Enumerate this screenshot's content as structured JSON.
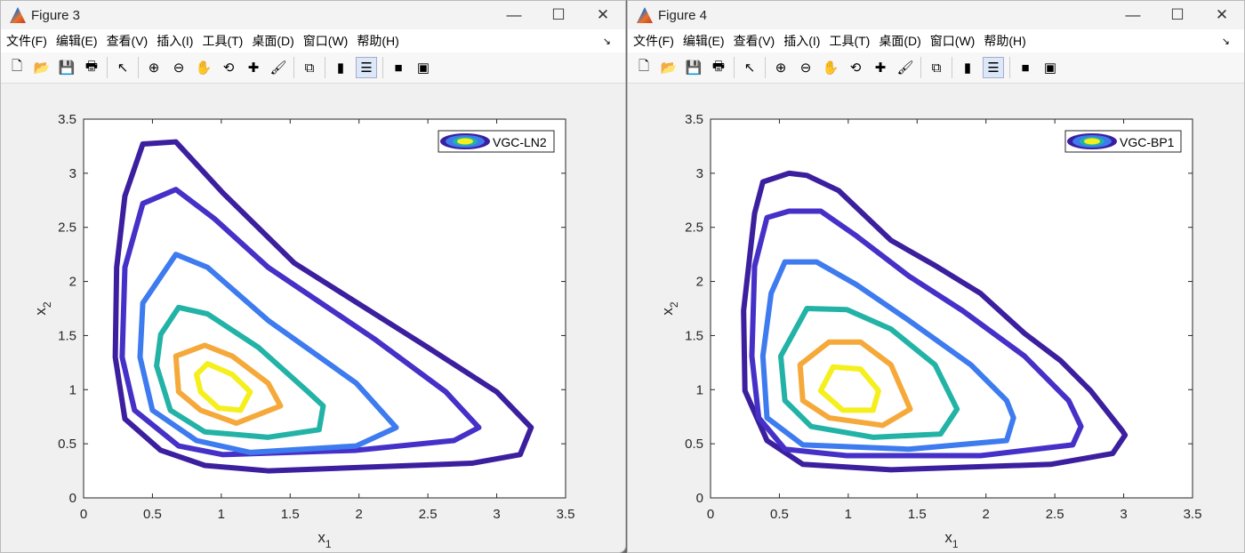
{
  "menu": [
    "文件(F)",
    "编辑(E)",
    "查看(V)",
    "插入(I)",
    "工具(T)",
    "桌面(D)",
    "窗口(W)",
    "帮助(H)"
  ],
  "toolbar_icons": [
    "new-file-icon",
    "open-folder-icon",
    "save-icon",
    "print-icon",
    "pointer-icon",
    "zoom-in-icon",
    "zoom-out-icon",
    "pan-hand-icon",
    "rotate-3d-icon",
    "data-cursor-icon",
    "brush-icon",
    "link-plot-icon",
    "colorbar-icon",
    "legend-icon",
    "hide-plot-tools-icon",
    "show-plot-tools-icon"
  ],
  "colors": {
    "levels": [
      "#3b1f9e",
      "#4530c8",
      "#3d7bef",
      "#22b3a6",
      "#f5a93a",
      "#f5ef1c"
    ]
  },
  "chart_data": [
    {
      "window_title": "Figure 3",
      "type": "contour",
      "xlabel": "x",
      "xlabel_sub": "1",
      "ylabel": "x",
      "ylabel_sub": "2",
      "xlim": [
        0,
        3.5
      ],
      "ylim": [
        0,
        3.5
      ],
      "xticks": [
        "0",
        "0.5",
        "1",
        "1.5",
        "2",
        "2.5",
        "3",
        "3.5"
      ],
      "yticks": [
        "0",
        "0.5",
        "1",
        "1.5",
        "2",
        "2.5",
        "3",
        "3.5"
      ],
      "legend": "VGC-LN2",
      "legend_position": "top-right",
      "contours": [
        [
          [
            0.43,
            3.27
          ],
          [
            0.67,
            3.29
          ],
          [
            1.01,
            2.82
          ],
          [
            1.53,
            2.17
          ],
          [
            2.5,
            1.39
          ],
          [
            3.0,
            0.98
          ],
          [
            3.25,
            0.65
          ],
          [
            3.17,
            0.4
          ],
          [
            2.82,
            0.32
          ],
          [
            1.34,
            0.25
          ],
          [
            0.88,
            0.3
          ],
          [
            0.56,
            0.44
          ],
          [
            0.3,
            0.73
          ],
          [
            0.23,
            1.3
          ],
          [
            0.24,
            2.13
          ],
          [
            0.3,
            2.79
          ]
        ],
        [
          [
            0.43,
            2.72
          ],
          [
            0.67,
            2.85
          ],
          [
            0.95,
            2.58
          ],
          [
            1.34,
            2.13
          ],
          [
            2.11,
            1.47
          ],
          [
            2.63,
            0.98
          ],
          [
            2.87,
            0.65
          ],
          [
            2.69,
            0.53
          ],
          [
            1.98,
            0.44
          ],
          [
            1.01,
            0.4
          ],
          [
            0.69,
            0.48
          ],
          [
            0.37,
            0.81
          ],
          [
            0.28,
            1.3
          ],
          [
            0.3,
            2.13
          ]
        ],
        [
          [
            0.67,
            2.25
          ],
          [
            0.9,
            2.13
          ],
          [
            1.34,
            1.64
          ],
          [
            1.98,
            1.06
          ],
          [
            2.27,
            0.65
          ],
          [
            1.98,
            0.48
          ],
          [
            1.21,
            0.42
          ],
          [
            0.82,
            0.53
          ],
          [
            0.5,
            0.81
          ],
          [
            0.41,
            1.3
          ],
          [
            0.43,
            1.8
          ]
        ],
        [
          [
            0.69,
            1.76
          ],
          [
            0.9,
            1.7
          ],
          [
            1.27,
            1.39
          ],
          [
            1.63,
            0.98
          ],
          [
            1.74,
            0.85
          ],
          [
            1.71,
            0.63
          ],
          [
            1.34,
            0.56
          ],
          [
            0.88,
            0.61
          ],
          [
            0.63,
            0.81
          ],
          [
            0.53,
            1.22
          ],
          [
            0.56,
            1.51
          ]
        ],
        [
          [
            0.88,
            1.41
          ],
          [
            1.08,
            1.31
          ],
          [
            1.34,
            1.06
          ],
          [
            1.43,
            0.85
          ],
          [
            1.11,
            0.69
          ],
          [
            0.85,
            0.81
          ],
          [
            0.69,
            0.98
          ],
          [
            0.67,
            1.31
          ]
        ],
        [
          [
            0.9,
            1.24
          ],
          [
            1.08,
            1.14
          ],
          [
            1.21,
            0.98
          ],
          [
            1.14,
            0.81
          ],
          [
            0.98,
            0.83
          ],
          [
            0.85,
            0.98
          ],
          [
            0.82,
            1.14
          ]
        ]
      ]
    },
    {
      "window_title": "Figure 4",
      "type": "contour",
      "xlabel": "x",
      "xlabel_sub": "1",
      "ylabel": "x",
      "ylabel_sub": "2",
      "xlim": [
        0,
        3.5
      ],
      "ylim": [
        0,
        3.5
      ],
      "xticks": [
        "0",
        "0.5",
        "1",
        "1.5",
        "2",
        "2.5",
        "3",
        "3.5"
      ],
      "yticks": [
        "0",
        "0.5",
        "1",
        "1.5",
        "2",
        "2.5",
        "3",
        "3.5"
      ],
      "legend": "VGC-BP1",
      "legend_position": "top-right",
      "contours": [
        [
          [
            0.38,
            2.92
          ],
          [
            0.57,
            3.0
          ],
          [
            0.7,
            2.98
          ],
          [
            0.93,
            2.84
          ],
          [
            1.31,
            2.38
          ],
          [
            1.64,
            2.14
          ],
          [
            1.96,
            1.89
          ],
          [
            2.28,
            1.52
          ],
          [
            2.54,
            1.27
          ],
          [
            2.76,
            0.99
          ],
          [
            2.99,
            0.62
          ],
          [
            3.01,
            0.58
          ],
          [
            2.92,
            0.41
          ],
          [
            2.47,
            0.31
          ],
          [
            1.31,
            0.26
          ],
          [
            0.67,
            0.31
          ],
          [
            0.41,
            0.53
          ],
          [
            0.25,
            0.99
          ],
          [
            0.24,
            1.73
          ],
          [
            0.32,
            2.63
          ]
        ],
        [
          [
            0.41,
            2.59
          ],
          [
            0.57,
            2.65
          ],
          [
            0.8,
            2.65
          ],
          [
            1.06,
            2.42
          ],
          [
            1.44,
            2.05
          ],
          [
            1.83,
            1.73
          ],
          [
            2.28,
            1.31
          ],
          [
            2.6,
            0.9
          ],
          [
            2.69,
            0.66
          ],
          [
            2.63,
            0.49
          ],
          [
            1.96,
            0.39
          ],
          [
            0.99,
            0.39
          ],
          [
            0.54,
            0.45
          ],
          [
            0.35,
            0.74
          ],
          [
            0.3,
            1.31
          ],
          [
            0.32,
            2.14
          ]
        ],
        [
          [
            0.54,
            2.18
          ],
          [
            0.77,
            2.18
          ],
          [
            1.06,
            1.97
          ],
          [
            1.44,
            1.64
          ],
          [
            1.89,
            1.23
          ],
          [
            2.15,
            0.9
          ],
          [
            2.2,
            0.74
          ],
          [
            2.15,
            0.53
          ],
          [
            1.44,
            0.45
          ],
          [
            0.67,
            0.49
          ],
          [
            0.41,
            0.74
          ],
          [
            0.38,
            1.31
          ],
          [
            0.44,
            1.89
          ]
        ],
        [
          [
            0.7,
            1.75
          ],
          [
            0.99,
            1.74
          ],
          [
            1.31,
            1.56
          ],
          [
            1.63,
            1.23
          ],
          [
            1.79,
            0.82
          ],
          [
            1.67,
            0.59
          ],
          [
            1.18,
            0.56
          ],
          [
            0.73,
            0.66
          ],
          [
            0.54,
            0.9
          ],
          [
            0.51,
            1.31
          ]
        ],
        [
          [
            0.86,
            1.44
          ],
          [
            1.09,
            1.44
          ],
          [
            1.31,
            1.23
          ],
          [
            1.45,
            0.82
          ],
          [
            1.25,
            0.67
          ],
          [
            0.86,
            0.74
          ],
          [
            0.67,
            0.9
          ],
          [
            0.65,
            1.23
          ]
        ],
        [
          [
            0.89,
            1.21
          ],
          [
            1.09,
            1.19
          ],
          [
            1.22,
            0.99
          ],
          [
            1.18,
            0.81
          ],
          [
            0.96,
            0.81
          ],
          [
            0.8,
            0.99
          ]
        ]
      ]
    }
  ]
}
